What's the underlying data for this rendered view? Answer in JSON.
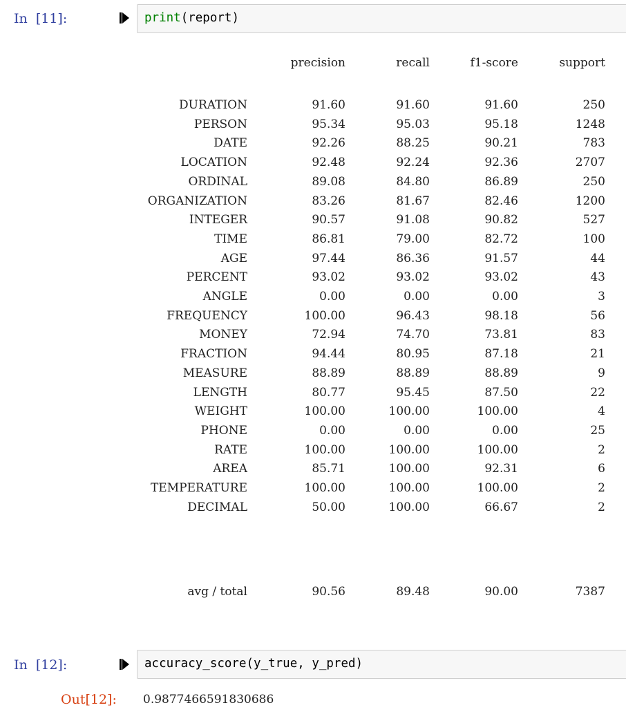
{
  "cells": [
    {
      "prompt": "In  [11]:",
      "code_func": "print",
      "code_rest": "(report)"
    },
    {
      "prompt": "In  [12]:",
      "code": "accuracy_score(y_true, y_pred)",
      "out_prompt": "Out[12]:",
      "output": "0.9877466591830686"
    }
  ],
  "report": {
    "headers": [
      "precision",
      "recall",
      "f1-score",
      "support"
    ],
    "rows": [
      {
        "label": "DURATION",
        "precision": "91.60",
        "recall": "91.60",
        "f1": "91.60",
        "support": "250"
      },
      {
        "label": "PERSON",
        "precision": "95.34",
        "recall": "95.03",
        "f1": "95.18",
        "support": "1248"
      },
      {
        "label": "DATE",
        "precision": "92.26",
        "recall": "88.25",
        "f1": "90.21",
        "support": "783"
      },
      {
        "label": "LOCATION",
        "precision": "92.48",
        "recall": "92.24",
        "f1": "92.36",
        "support": "2707"
      },
      {
        "label": "ORDINAL",
        "precision": "89.08",
        "recall": "84.80",
        "f1": "86.89",
        "support": "250"
      },
      {
        "label": "ORGANIZATION",
        "precision": "83.26",
        "recall": "81.67",
        "f1": "82.46",
        "support": "1200"
      },
      {
        "label": "INTEGER",
        "precision": "90.57",
        "recall": "91.08",
        "f1": "90.82",
        "support": "527"
      },
      {
        "label": "TIME",
        "precision": "86.81",
        "recall": "79.00",
        "f1": "82.72",
        "support": "100"
      },
      {
        "label": "AGE",
        "precision": "97.44",
        "recall": "86.36",
        "f1": "91.57",
        "support": "44"
      },
      {
        "label": "PERCENT",
        "precision": "93.02",
        "recall": "93.02",
        "f1": "93.02",
        "support": "43"
      },
      {
        "label": "ANGLE",
        "precision": "0.00",
        "recall": "0.00",
        "f1": "0.00",
        "support": "3"
      },
      {
        "label": "FREQUENCY",
        "precision": "100.00",
        "recall": "96.43",
        "f1": "98.18",
        "support": "56"
      },
      {
        "label": "MONEY",
        "precision": "72.94",
        "recall": "74.70",
        "f1": "73.81",
        "support": "83"
      },
      {
        "label": "FRACTION",
        "precision": "94.44",
        "recall": "80.95",
        "f1": "87.18",
        "support": "21"
      },
      {
        "label": "MEASURE",
        "precision": "88.89",
        "recall": "88.89",
        "f1": "88.89",
        "support": "9"
      },
      {
        "label": "LENGTH",
        "precision": "80.77",
        "recall": "95.45",
        "f1": "87.50",
        "support": "22"
      },
      {
        "label": "WEIGHT",
        "precision": "100.00",
        "recall": "100.00",
        "f1": "100.00",
        "support": "4"
      },
      {
        "label": "PHONE",
        "precision": "0.00",
        "recall": "0.00",
        "f1": "0.00",
        "support": "25"
      },
      {
        "label": "RATE",
        "precision": "100.00",
        "recall": "100.00",
        "f1": "100.00",
        "support": "2"
      },
      {
        "label": "AREA",
        "precision": "85.71",
        "recall": "100.00",
        "f1": "92.31",
        "support": "6"
      },
      {
        "label": "TEMPERATURE",
        "precision": "100.00",
        "recall": "100.00",
        "f1": "100.00",
        "support": "2"
      },
      {
        "label": "DECIMAL",
        "precision": "50.00",
        "recall": "100.00",
        "f1": "66.67",
        "support": "2"
      }
    ],
    "total": {
      "label": "avg / total",
      "precision": "90.56",
      "recall": "89.48",
      "f1": "90.00",
      "support": "7387"
    }
  }
}
